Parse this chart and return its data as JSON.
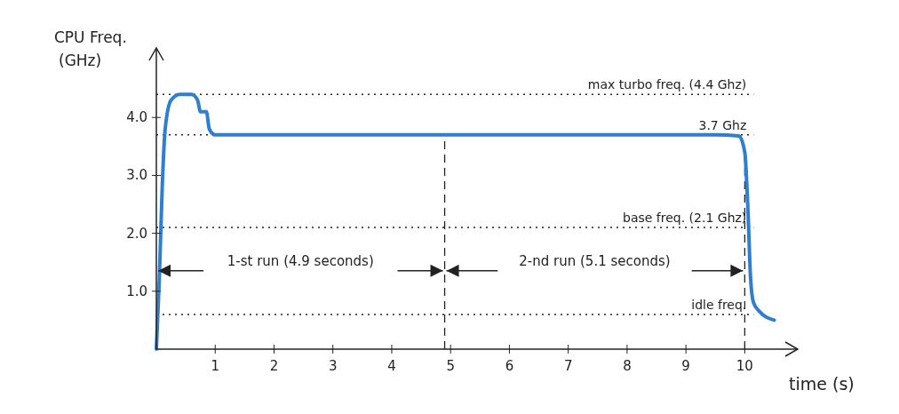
{
  "chart_data": {
    "type": "line",
    "xlabel": "time (s)",
    "ylabel": "CPU Freq. (GHz)",
    "xlim": [
      0,
      10.9
    ],
    "ylim": [
      0,
      5.2
    ],
    "xticks": [
      1,
      2,
      3,
      4,
      5,
      6,
      7,
      8,
      9,
      10
    ],
    "yticks": [
      {
        "value": 1,
        "label": "1.0"
      },
      {
        "value": 2,
        "label": "2.0"
      },
      {
        "value": 3,
        "label": "3.0"
      },
      {
        "value": 4,
        "label": "4.0"
      }
    ],
    "grid": false,
    "marker": "none",
    "line_style": "solid",
    "series": [
      {
        "color": "#2f7fd0",
        "x": [
          0,
          0.05,
          0.1,
          0.15,
          0.25,
          0.4,
          0.6,
          0.7,
          0.75,
          0.85,
          0.9,
          1.0,
          1.3,
          2,
          4,
          6,
          8,
          9.5,
          9.9,
          10.0,
          10.05,
          10.1,
          10.15,
          10.25,
          10.5
        ],
        "values": [
          0,
          1.2,
          2.8,
          3.8,
          4.3,
          4.4,
          4.4,
          4.3,
          4.1,
          4.1,
          3.8,
          3.7,
          3.7,
          3.7,
          3.7,
          3.7,
          3.7,
          3.7,
          3.68,
          3.4,
          2.5,
          1.2,
          0.8,
          0.65,
          0.5
        ]
      }
    ],
    "ref_lines": [
      {
        "axis": "y",
        "value": 4.4,
        "label": "max turbo freq. (4.4 Ghz)",
        "line_style": "dotted"
      },
      {
        "axis": "y",
        "value": 3.7,
        "label": "3.7 Ghz",
        "line_style": "dotted"
      },
      {
        "axis": "y",
        "value": 2.1,
        "label": "base freq. (2.1 Ghz)",
        "line_style": "dotted"
      },
      {
        "axis": "y",
        "value": 0.6,
        "label": "idle freq.",
        "line_style": "dotted"
      },
      {
        "axis": "x",
        "value": 4.9,
        "line_style": "dashed"
      },
      {
        "axis": "x",
        "value": 10,
        "line_style": "dashed"
      }
    ],
    "annotations": [
      "1-st run (4.9 seconds)",
      "2-nd run (5.1 seconds)"
    ]
  }
}
